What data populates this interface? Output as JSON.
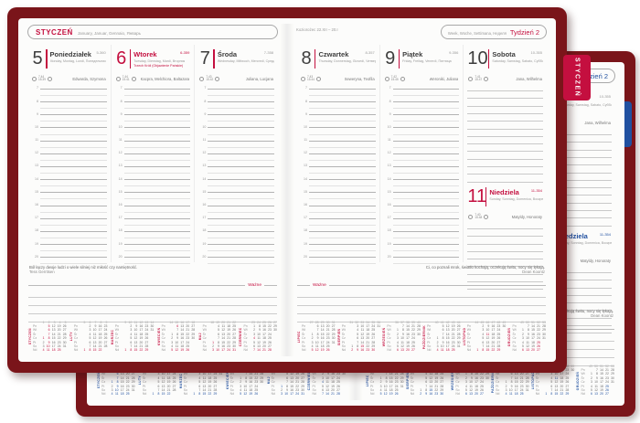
{
  "meta": {
    "cover_color": "#7a151a",
    "accent_red": "#c40f3f",
    "accent_blue": "#2050a0",
    "page_color": "#fcfcfb"
  },
  "tabs": {
    "front": "STYCZEŃ",
    "back": "STYCZEŃ"
  },
  "hours": [
    7,
    8,
    9,
    10,
    11,
    12,
    13,
    14,
    15,
    16,
    17,
    18,
    19,
    20
  ],
  "day_labels": [
    "Pn",
    "Wt",
    "Śr",
    "Cz",
    "Pt",
    "So",
    "Nd"
  ],
  "left_page": {
    "month_title": "STYCZEŃ",
    "month_sub": "January, Januar, Gennaio, Январь",
    "days": [
      {
        "num": "5",
        "name": "Poniedziałek",
        "sub": "Monday, Montag, Lundi, Понедельник",
        "code": "5-360",
        "names": "Edwarda, Szymona",
        "sunrise": "7.44",
        "sunset": "15.39",
        "red": false,
        "holiday": ""
      },
      {
        "num": "6",
        "name": "Wtorek",
        "sub": "Tuesday, Dienstag, Mardi, Вторник",
        "code": "6-359",
        "names": "Kacpra, Melchiora, Baltazara",
        "sunrise": "7.44",
        "sunset": "15.41",
        "red": true,
        "holiday": "Trzech Króli (Objawienie Pańskie)"
      },
      {
        "num": "7",
        "name": "Środa",
        "sub": "Wednesday, Mittwoch, Mercredi, Среда",
        "code": "7-358",
        "names": "Juliana, Lucjana",
        "sunrise": "7.43",
        "sunset": "15.42",
        "red": false,
        "holiday": ""
      }
    ],
    "quote": "Ból łączy dwoje ludzi o wiele silniej niż miłość czy namiętność.",
    "quote_author": "Tess Gerritsen",
    "important_label": "Ważne"
  },
  "right_page": {
    "zodiac": "Koziorożec 22.XII – 20.I",
    "week_sub": "Week, Woche, Settimana, Неделя",
    "week_label": "Tydzień 2",
    "days": [
      {
        "num": "8",
        "name": "Czwartek",
        "sub": "Thursday, Donnerstag, Giovedì, Четверг",
        "code": "8-357",
        "names": "Seweryna, Teofila",
        "sunrise": "7.43",
        "sunset": "15.44",
        "red": false,
        "holiday": ""
      },
      {
        "num": "9",
        "name": "Piątek",
        "sub": "Friday, Freitag, Venerdì, Пятница",
        "code": "9-356",
        "names": "Weroniki, Juliana",
        "sunrise": "7.42",
        "sunset": "15.45",
        "red": false,
        "holiday": ""
      },
      {
        "num": "10",
        "name": "Sobota",
        "sub": "Saturday, Samstag, Sabato, Суббота",
        "code": "10-355",
        "names": "Jana, Wilhelma",
        "sunrise": "7.41",
        "sunset": "15.47",
        "red": false,
        "holiday": ""
      }
    ],
    "sunday": {
      "num": "11",
      "name": "Niedziela",
      "sub": "Sunday, Sonntag, Domenica, Воскресенье",
      "code": "11-354",
      "names": "Matyldy, Honoraty",
      "sunrise": "7.40",
      "sunset": "15.48",
      "red": true,
      "holiday": ""
    },
    "quote": "Ci, co poznali mrok, światło kochają, oczekują świtu, nocy się lękają.",
    "quote_author": "Dean Koontz",
    "important_label": "Ważne"
  },
  "mini_months": [
    {
      "label": "STYCZEŃ",
      "weeks": [
        1,
        2,
        3,
        4,
        5
      ],
      "red": [
        1,
        5,
        6,
        7,
        8,
        9,
        10,
        11
      ],
      "rows": [
        [
          null,
          5,
          12,
          19,
          26
        ],
        [
          null,
          6,
          13,
          20,
          27
        ],
        [
          null,
          7,
          14,
          21,
          28
        ],
        [
          1,
          8,
          15,
          22,
          29
        ],
        [
          2,
          9,
          16,
          23,
          30
        ],
        [
          3,
          10,
          17,
          24,
          31
        ],
        [
          4,
          11,
          18,
          25,
          null
        ]
      ]
    },
    {
      "label": "LUTY",
      "weeks": [
        5,
        6,
        7,
        8,
        9
      ],
      "red": [],
      "rows": [
        [
          null,
          2,
          9,
          16,
          23
        ],
        [
          null,
          3,
          10,
          17,
          24
        ],
        [
          null,
          4,
          11,
          18,
          25
        ],
        [
          null,
          5,
          12,
          19,
          26
        ],
        [
          null,
          6,
          13,
          20,
          27
        ],
        [
          null,
          7,
          14,
          21,
          28
        ],
        [
          1,
          8,
          15,
          22,
          null
        ]
      ]
    },
    {
      "label": "MARZEC",
      "weeks": [
        9,
        10,
        11,
        12,
        13,
        14
      ],
      "red": [],
      "rows": [
        [
          null,
          2,
          9,
          16,
          23,
          30
        ],
        [
          null,
          3,
          10,
          17,
          24,
          31
        ],
        [
          null,
          4,
          11,
          18,
          25,
          null
        ],
        [
          null,
          5,
          12,
          19,
          26,
          null
        ],
        [
          null,
          6,
          13,
          20,
          27,
          null
        ],
        [
          null,
          7,
          14,
          21,
          28,
          null
        ],
        [
          1,
          8,
          15,
          22,
          29,
          null
        ]
      ]
    },
    {
      "label": "KWIECIEŃ",
      "weeks": [
        14,
        15,
        16,
        17,
        18
      ],
      "red": [
        6
      ],
      "rows": [
        [
          null,
          6,
          13,
          20,
          27
        ],
        [
          null,
          7,
          14,
          21,
          28
        ],
        [
          1,
          8,
          15,
          22,
          29
        ],
        [
          2,
          9,
          16,
          23,
          30
        ],
        [
          3,
          10,
          17,
          24,
          null
        ],
        [
          4,
          11,
          18,
          25,
          null
        ],
        [
          5,
          12,
          19,
          26,
          null
        ]
      ]
    },
    {
      "label": "MAJ",
      "weeks": [
        18,
        19,
        20,
        21,
        22
      ],
      "red": [
        1,
        3
      ],
      "rows": [
        [
          null,
          4,
          11,
          18,
          25
        ],
        [
          null,
          5,
          12,
          19,
          26
        ],
        [
          null,
          6,
          13,
          20,
          27
        ],
        [
          null,
          7,
          14,
          21,
          28
        ],
        [
          1,
          8,
          15,
          22,
          29
        ],
        [
          2,
          9,
          16,
          23,
          30
        ],
        [
          3,
          10,
          17,
          24,
          31
        ]
      ]
    },
    {
      "label": "CZERWIEC",
      "weeks": [
        23,
        24,
        25,
        26,
        27
      ],
      "red": [
        4
      ],
      "rows": [
        [
          1,
          8,
          15,
          22,
          29
        ],
        [
          2,
          9,
          16,
          23,
          30
        ],
        [
          3,
          10,
          17,
          24,
          null
        ],
        [
          4,
          11,
          18,
          25,
          null
        ],
        [
          5,
          12,
          19,
          26,
          null
        ],
        [
          6,
          13,
          20,
          27,
          null
        ],
        [
          7,
          14,
          21,
          28,
          null
        ]
      ]
    },
    {
      "label": "LIPIEC",
      "weeks": [
        27,
        28,
        29,
        30,
        31
      ],
      "red": [],
      "rows": [
        [
          null,
          6,
          13,
          20,
          27
        ],
        [
          null,
          7,
          14,
          21,
          28
        ],
        [
          1,
          8,
          15,
          22,
          29
        ],
        [
          2,
          9,
          16,
          23,
          30
        ],
        [
          3,
          10,
          17,
          24,
          31
        ],
        [
          4,
          11,
          18,
          25,
          null
        ],
        [
          5,
          12,
          19,
          26,
          null
        ]
      ]
    },
    {
      "label": "SIERPIEŃ",
      "weeks": [
        31,
        32,
        33,
        34,
        35,
        36
      ],
      "red": [
        15
      ],
      "rows": [
        [
          null,
          3,
          10,
          17,
          24,
          31
        ],
        [
          null,
          4,
          11,
          18,
          25,
          null
        ],
        [
          null,
          5,
          12,
          19,
          26,
          null
        ],
        [
          null,
          6,
          13,
          20,
          27,
          null
        ],
        [
          null,
          7,
          14,
          21,
          28,
          null
        ],
        [
          1,
          8,
          15,
          22,
          29,
          null
        ],
        [
          2,
          9,
          16,
          23,
          30,
          null
        ]
      ]
    },
    {
      "label": "WRZESIEŃ",
      "weeks": [
        36,
        37,
        38,
        39,
        40
      ],
      "red": [],
      "rows": [
        [
          null,
          7,
          14,
          21,
          28
        ],
        [
          1,
          8,
          15,
          22,
          29
        ],
        [
          2,
          9,
          16,
          23,
          30
        ],
        [
          3,
          10,
          17,
          24,
          null
        ],
        [
          4,
          11,
          18,
          25,
          null
        ],
        [
          5,
          12,
          19,
          26,
          null
        ],
        [
          6,
          13,
          20,
          27,
          null
        ]
      ]
    },
    {
      "label": "PAŹDZIERNIK",
      "weeks": [
        40,
        41,
        42,
        43,
        44
      ],
      "red": [],
      "rows": [
        [
          null,
          5,
          12,
          19,
          26
        ],
        [
          null,
          6,
          13,
          20,
          27
        ],
        [
          null,
          7,
          14,
          21,
          28
        ],
        [
          1,
          8,
          15,
          22,
          29
        ],
        [
          2,
          9,
          16,
          23,
          30
        ],
        [
          3,
          10,
          17,
          24,
          31
        ],
        [
          4,
          11,
          18,
          25,
          null
        ]
      ]
    },
    {
      "label": "LISTOPAD",
      "weeks": [
        44,
        45,
        46,
        47,
        48,
        49
      ],
      "red": [
        11
      ],
      "rows": [
        [
          null,
          2,
          9,
          16,
          23,
          30
        ],
        [
          null,
          3,
          10,
          17,
          24,
          null
        ],
        [
          null,
          4,
          11,
          18,
          25,
          null
        ],
        [
          null,
          5,
          12,
          19,
          26,
          null
        ],
        [
          null,
          6,
          13,
          20,
          27,
          null
        ],
        [
          null,
          7,
          14,
          21,
          28,
          null
        ],
        [
          1,
          8,
          15,
          22,
          29,
          null
        ]
      ]
    },
    {
      "label": "GRUDZIEŃ",
      "weeks": [
        49,
        50,
        51,
        52,
        53
      ],
      "red": [
        25,
        26
      ],
      "rows": [
        [
          null,
          7,
          14,
          21,
          28
        ],
        [
          1,
          8,
          15,
          22,
          29
        ],
        [
          2,
          9,
          16,
          23,
          30
        ],
        [
          3,
          10,
          17,
          24,
          31
        ],
        [
          4,
          11,
          18,
          25,
          null
        ],
        [
          5,
          12,
          19,
          26,
          null
        ],
        [
          6,
          13,
          20,
          27,
          null
        ]
      ]
    }
  ]
}
